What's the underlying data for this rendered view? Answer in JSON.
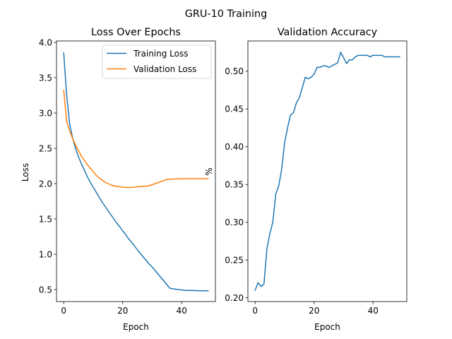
{
  "figure": {
    "suptitle": "GRU-10 Training"
  },
  "chart_data": [
    {
      "type": "line",
      "title": "Loss Over Epochs",
      "xlabel": "Epoch",
      "ylabel": "Loss",
      "xlim": [
        -2.45,
        51.45
      ],
      "ylim": [
        0.33,
        4.02
      ],
      "xticks": [
        0,
        20,
        40
      ],
      "yticks": [
        0.5,
        1.0,
        1.5,
        2.0,
        2.5,
        3.0,
        3.5,
        4.0
      ],
      "yticklabels": [
        "0.5",
        "1.0",
        "1.5",
        "2.0",
        "2.5",
        "3.0",
        "3.5",
        "4.0"
      ],
      "grid": false,
      "legend": "upper right",
      "series": [
        {
          "name": "Training Loss",
          "color": "#1f77b4",
          "x": [
            0,
            1,
            2,
            3,
            4,
            5,
            6,
            7,
            8,
            9,
            10,
            11,
            12,
            13,
            14,
            15,
            16,
            17,
            18,
            19,
            20,
            21,
            22,
            23,
            24,
            25,
            26,
            27,
            28,
            29,
            30,
            31,
            32,
            33,
            34,
            35,
            36,
            37,
            38,
            39,
            40,
            41,
            42,
            43,
            44,
            45,
            46,
            47,
            48,
            49
          ],
          "values": [
            3.85,
            3.25,
            2.85,
            2.65,
            2.5,
            2.38,
            2.28,
            2.19,
            2.1,
            2.02,
            1.95,
            1.88,
            1.81,
            1.74,
            1.68,
            1.62,
            1.56,
            1.5,
            1.44,
            1.39,
            1.33,
            1.28,
            1.22,
            1.17,
            1.12,
            1.06,
            1.01,
            0.96,
            0.91,
            0.86,
            0.82,
            0.77,
            0.72,
            0.67,
            0.62,
            0.57,
            0.52,
            0.51,
            0.505,
            0.5,
            0.495,
            0.49,
            0.488,
            0.487,
            0.486,
            0.485,
            0.484,
            0.483,
            0.482,
            0.482
          ]
        },
        {
          "name": "Validation Loss",
          "color": "#ff7f0e",
          "x": [
            0,
            1,
            2,
            3,
            4,
            5,
            6,
            7,
            8,
            9,
            10,
            11,
            12,
            13,
            14,
            15,
            16,
            17,
            18,
            19,
            20,
            21,
            22,
            23,
            24,
            25,
            26,
            27,
            28,
            29,
            30,
            31,
            32,
            33,
            34,
            35,
            36,
            37,
            38,
            39,
            40,
            41,
            42,
            43,
            44,
            45,
            46,
            47,
            48,
            49
          ],
          "values": [
            3.32,
            2.88,
            2.75,
            2.64,
            2.55,
            2.47,
            2.39,
            2.33,
            2.27,
            2.22,
            2.17,
            2.12,
            2.08,
            2.05,
            2.02,
            2.0,
            1.98,
            1.97,
            1.96,
            1.955,
            1.95,
            1.945,
            1.945,
            1.945,
            1.95,
            1.955,
            1.96,
            1.96,
            1.965,
            1.97,
            1.985,
            2.0,
            2.015,
            2.03,
            2.045,
            2.06,
            2.063,
            2.065,
            2.066,
            2.067,
            2.068,
            2.069,
            2.07,
            2.07,
            2.07,
            2.07,
            2.07,
            2.07,
            2.07,
            2.07
          ]
        }
      ]
    },
    {
      "type": "line",
      "title": "Validation Accuracy",
      "xlabel": "Epoch",
      "ylabel": "%",
      "xlim": [
        -2.45,
        51.45
      ],
      "ylim": [
        0.195,
        0.54
      ],
      "xticks": [
        0,
        20,
        40
      ],
      "yticks": [
        0.2,
        0.25,
        0.3,
        0.35,
        0.4,
        0.45,
        0.5
      ],
      "yticklabels": [
        "0.20",
        "0.25",
        "0.30",
        "0.35",
        "0.40",
        "0.45",
        "0.50"
      ],
      "grid": false,
      "series": [
        {
          "color": "#1f77b4",
          "x": [
            0,
            1,
            2,
            3,
            4,
            5,
            6,
            7,
            8,
            9,
            10,
            11,
            12,
            13,
            14,
            15,
            16,
            17,
            18,
            19,
            20,
            21,
            22,
            23,
            24,
            25,
            26,
            27,
            28,
            29,
            30,
            31,
            32,
            33,
            34,
            35,
            36,
            37,
            38,
            39,
            40,
            41,
            42,
            43,
            44,
            45,
            46,
            47,
            48,
            49
          ],
          "values": [
            0.21,
            0.22,
            0.215,
            0.218,
            0.265,
            0.285,
            0.3,
            0.337,
            0.348,
            0.37,
            0.405,
            0.425,
            0.442,
            0.445,
            0.458,
            0.465,
            0.478,
            0.492,
            0.49,
            0.492,
            0.496,
            0.505,
            0.505,
            0.507,
            0.507,
            0.505,
            0.507,
            0.509,
            0.511,
            0.525,
            0.518,
            0.51,
            0.515,
            0.515,
            0.519,
            0.521,
            0.521,
            0.521,
            0.521,
            0.519,
            0.521,
            0.521,
            0.521,
            0.521,
            0.519,
            0.519,
            0.519,
            0.519,
            0.519,
            0.519
          ]
        }
      ]
    }
  ]
}
